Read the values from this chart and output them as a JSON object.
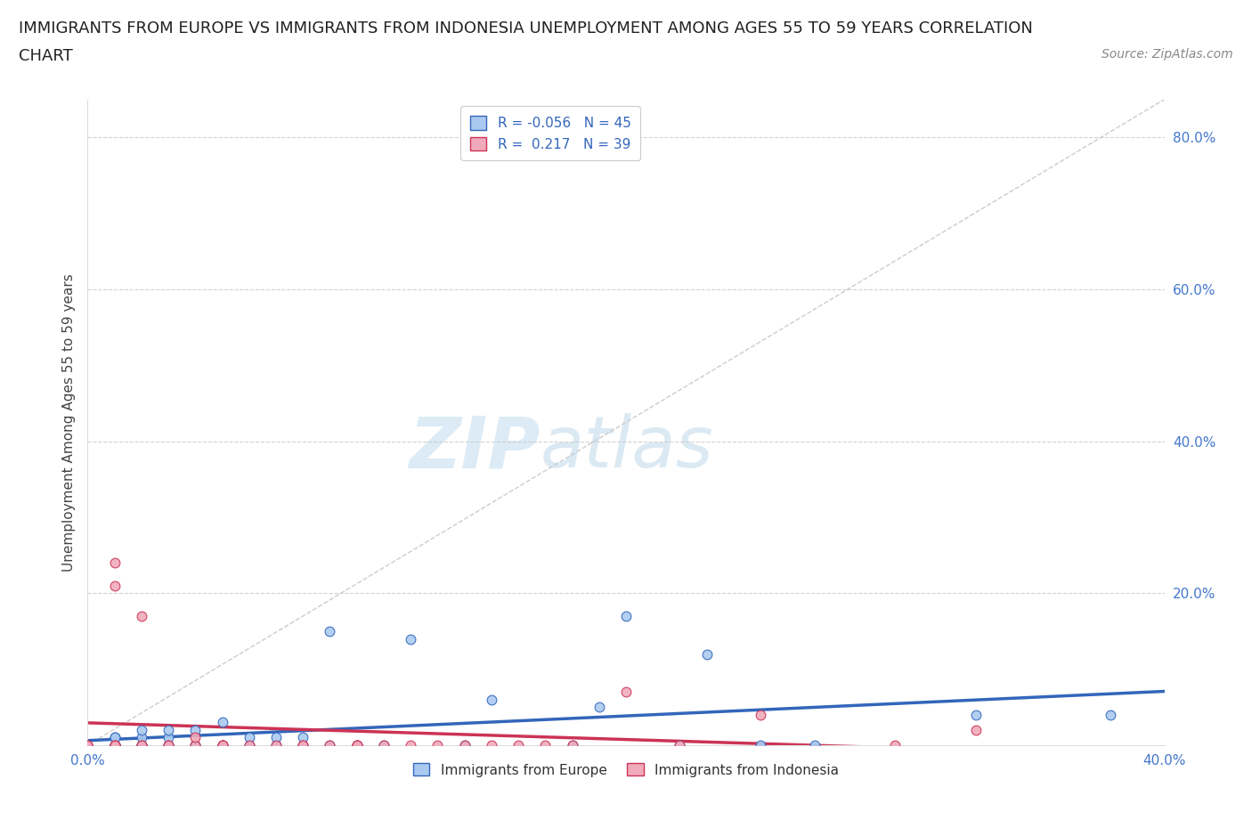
{
  "title_line1": "IMMIGRANTS FROM EUROPE VS IMMIGRANTS FROM INDONESIA UNEMPLOYMENT AMONG AGES 55 TO 59 YEARS CORRELATION",
  "title_line2": "CHART",
  "source": "Source: ZipAtlas.com",
  "ylabel": "Unemployment Among Ages 55 to 59 years",
  "xlim": [
    0.0,
    0.4
  ],
  "ylim": [
    0.0,
    0.85
  ],
  "xticks": [
    0.0,
    0.1,
    0.2,
    0.3,
    0.4
  ],
  "xticklabels": [
    "0.0%",
    "",
    "",
    "",
    "40.0%"
  ],
  "yticks": [
    0.2,
    0.4,
    0.6,
    0.8
  ],
  "yticklabels": [
    "20.0%",
    "40.0%",
    "60.0%",
    "80.0%"
  ],
  "europe_R": -0.056,
  "europe_N": 45,
  "indonesia_R": 0.217,
  "indonesia_N": 39,
  "europe_color": "#aac9f0",
  "indonesia_color": "#f0aabb",
  "europe_line_color": "#3366bb",
  "indonesia_line_color": "#cc3355",
  "watermark_zip": "ZIP",
  "watermark_atlas": "atlas",
  "europe_x": [
    0.0,
    0.01,
    0.01,
    0.01,
    0.01,
    0.01,
    0.01,
    0.01,
    0.02,
    0.02,
    0.02,
    0.02,
    0.02,
    0.03,
    0.03,
    0.03,
    0.03,
    0.04,
    0.04,
    0.04,
    0.05,
    0.05,
    0.05,
    0.06,
    0.06,
    0.07,
    0.07,
    0.08,
    0.08,
    0.09,
    0.09,
    0.1,
    0.11,
    0.12,
    0.14,
    0.15,
    0.18,
    0.19,
    0.2,
    0.22,
    0.23,
    0.25,
    0.27,
    0.33,
    0.38
  ],
  "europe_y": [
    0.0,
    0.0,
    0.0,
    0.0,
    0.0,
    0.0,
    0.01,
    0.01,
    0.0,
    0.0,
    0.0,
    0.01,
    0.02,
    0.0,
    0.0,
    0.01,
    0.02,
    0.0,
    0.0,
    0.02,
    0.0,
    0.0,
    0.03,
    0.0,
    0.01,
    0.0,
    0.01,
    0.0,
    0.01,
    0.0,
    0.15,
    0.0,
    0.0,
    0.14,
    0.0,
    0.06,
    0.0,
    0.05,
    0.17,
    0.0,
    0.12,
    0.0,
    0.0,
    0.04,
    0.04
  ],
  "indonesia_x": [
    0.0,
    0.0,
    0.0,
    0.01,
    0.01,
    0.01,
    0.01,
    0.01,
    0.02,
    0.02,
    0.02,
    0.03,
    0.03,
    0.04,
    0.04,
    0.05,
    0.05,
    0.05,
    0.06,
    0.07,
    0.08,
    0.08,
    0.09,
    0.1,
    0.1,
    0.1,
    0.11,
    0.12,
    0.13,
    0.14,
    0.15,
    0.16,
    0.17,
    0.18,
    0.2,
    0.22,
    0.25,
    0.3,
    0.33
  ],
  "indonesia_y": [
    0.0,
    0.0,
    0.0,
    0.0,
    0.0,
    0.0,
    0.21,
    0.24,
    0.0,
    0.0,
    0.17,
    0.0,
    0.0,
    0.0,
    0.01,
    0.0,
    0.0,
    0.0,
    0.0,
    0.0,
    0.0,
    0.0,
    0.0,
    0.0,
    0.0,
    0.0,
    0.0,
    0.0,
    0.0,
    0.0,
    0.0,
    0.0,
    0.0,
    0.0,
    0.07,
    0.0,
    0.04,
    0.0,
    0.02
  ],
  "legend_europe_label": "Immigrants from Europe",
  "legend_indonesia_label": "Immigrants from Indonesia",
  "title_fontsize": 13,
  "axis_label_fontsize": 11,
  "tick_fontsize": 11,
  "legend_fontsize": 11,
  "source_fontsize": 10,
  "marker_size": 60,
  "background_color": "#ffffff",
  "grid_color": "#cccccc",
  "diagonal_color": "#cccccc"
}
